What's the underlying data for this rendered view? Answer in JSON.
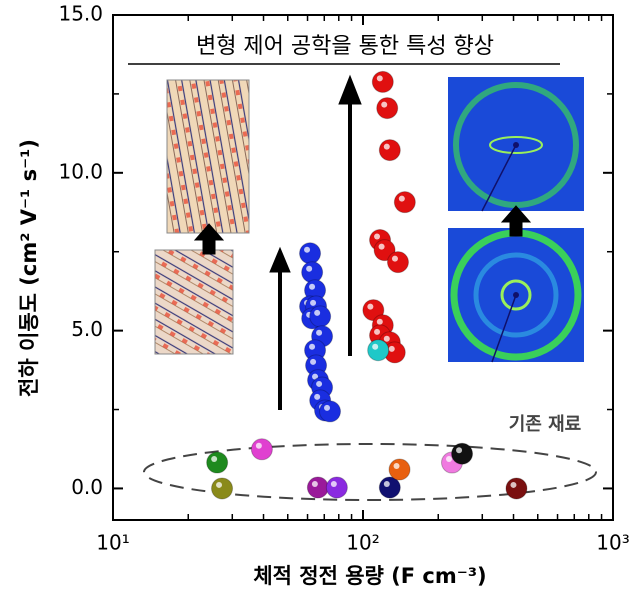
{
  "chart_data": {
    "type": "scatter",
    "title": "변형 제어 공학을 통한 특성 향상",
    "annotation": "기존 재료",
    "xlabel": "체적 정전 용량 (F cm⁻³)",
    "ylabel": "전하 이동도 (cm² V⁻¹ s⁻¹)",
    "xscale": "log",
    "xlim": [
      10,
      1000
    ],
    "ylim": [
      -1.0,
      15.0
    ],
    "xticks": [
      {
        "value": 10,
        "label": "10¹"
      },
      {
        "value": 100,
        "label": "10²"
      },
      {
        "value": 1000,
        "label": "10³"
      }
    ],
    "yticks": [
      {
        "value": 0,
        "label": "0.0"
      },
      {
        "value": 5,
        "label": "5.0"
      },
      {
        "value": 10,
        "label": "10.0"
      },
      {
        "value": 15,
        "label": "15.0"
      }
    ],
    "series": [
      {
        "color": "#1a2ee0",
        "x": [
          61.4,
          62.6,
          64.3,
          61.4,
          64.9,
          62.6,
          67.4,
          68.6,
          64.3,
          64.9,
          66.1,
          68.6,
          67.4,
          70.5,
          73.8
        ],
        "values": [
          7.45,
          6.85,
          6.28,
          5.77,
          5.77,
          5.39,
          5.45,
          4.82,
          4.38,
          3.9,
          3.43,
          3.2,
          2.79,
          2.47,
          2.44
        ]
      },
      {
        "color": "#e01010",
        "x": [
          120,
          125,
          128,
          147,
          117,
          122,
          138,
          110,
          120,
          117,
          128,
          134
        ],
        "values": [
          12.88,
          12.05,
          10.72,
          9.07,
          7.87,
          7.55,
          7.17,
          5.65,
          5.17,
          4.85,
          4.63,
          4.31
        ]
      },
      {
        "colors": [
          "#1fc8c8",
          "#1e8a1e",
          "#8a8a1a",
          "#e040d0",
          "#9a1a9a",
          "#8a2ae0",
          "#101070",
          "#e86010",
          "#f07ae0",
          "#111111",
          "#7a1010"
        ],
        "x": [
          115,
          26.1,
          27.3,
          39.4,
          66,
          78.6,
          128,
          140,
          227,
          249,
          411
        ],
        "values": [
          4.38,
          0.82,
          0.0,
          1.24,
          0.03,
          0.03,
          0.03,
          0.6,
          0.82,
          1.1,
          0.0
        ]
      }
    ]
  }
}
